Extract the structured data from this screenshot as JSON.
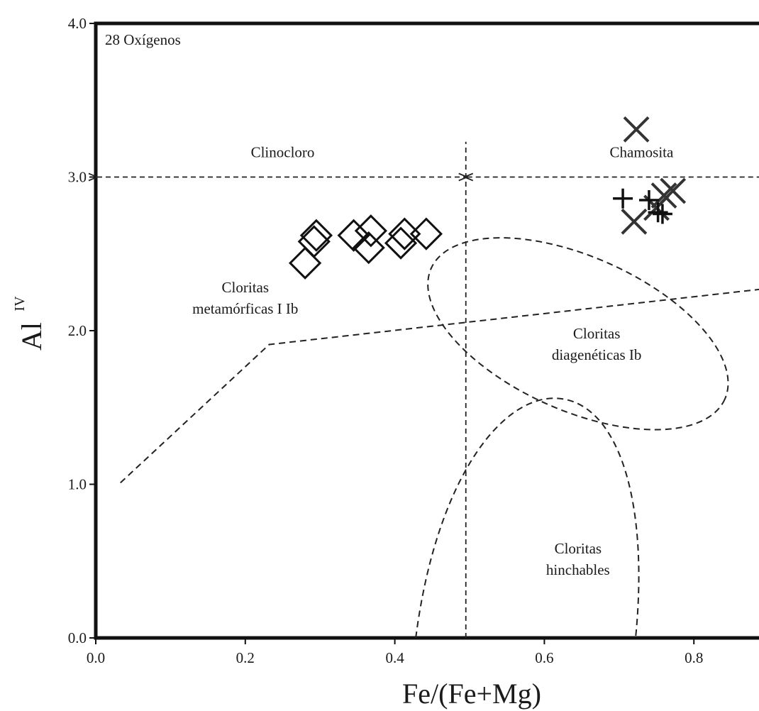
{
  "chart_data": {
    "type": "scatter",
    "title": "",
    "annotation_corner": "28 Oxígenos",
    "xlabel": "Fe/(Fe+Mg)",
    "ylabel": "Al",
    "ylabel_sup": "IV",
    "xlim": [
      0.0,
      0.89
    ],
    "ylim": [
      0.0,
      4.0
    ],
    "xticks": [
      {
        "value": 0.0,
        "label": "0.0"
      },
      {
        "value": 0.2,
        "label": "0.2"
      },
      {
        "value": 0.4,
        "label": "0.4"
      },
      {
        "value": 0.6,
        "label": "0.6"
      },
      {
        "value": 0.8,
        "label": "0.8"
      }
    ],
    "yticks": [
      {
        "value": 0.0,
        "label": "0.0"
      },
      {
        "value": 1.0,
        "label": "1.0"
      },
      {
        "value": 2.0,
        "label": "2.0"
      },
      {
        "value": 3.0,
        "label": "3.0"
      },
      {
        "value": 4.0,
        "label": "4.0"
      }
    ],
    "grid": false,
    "series": [
      {
        "marker": "diamond",
        "points": [
          {
            "x": 0.28,
            "y": 2.44
          },
          {
            "x": 0.292,
            "y": 2.58
          },
          {
            "x": 0.295,
            "y": 2.62
          },
          {
            "x": 0.345,
            "y": 2.62
          },
          {
            "x": 0.365,
            "y": 2.54
          },
          {
            "x": 0.368,
            "y": 2.65
          },
          {
            "x": 0.408,
            "y": 2.57
          },
          {
            "x": 0.413,
            "y": 2.63
          },
          {
            "x": 0.442,
            "y": 2.63
          }
        ]
      },
      {
        "marker": "x",
        "points": [
          {
            "x": 0.723,
            "y": 3.31
          },
          {
            "x": 0.72,
            "y": 2.71
          },
          {
            "x": 0.75,
            "y": 2.8
          },
          {
            "x": 0.76,
            "y": 2.88
          },
          {
            "x": 0.772,
            "y": 2.91
          }
        ]
      },
      {
        "marker": "plus",
        "points": [
          {
            "x": 0.705,
            "y": 2.86
          },
          {
            "x": 0.74,
            "y": 2.85
          },
          {
            "x": 0.752,
            "y": 2.77
          },
          {
            "x": 0.758,
            "y": 2.76
          }
        ]
      }
    ],
    "regions": [
      {
        "label_lines": [
          "Clinocloro"
        ],
        "x": 0.25,
        "y": 3.13
      },
      {
        "label_lines": [
          "Chamosita"
        ],
        "x": 0.73,
        "y": 3.13
      },
      {
        "label_lines": [
          "Cloritas",
          "metamórficas I Ib"
        ],
        "x": 0.2,
        "y": 2.25
      },
      {
        "label_lines": [
          "Cloritas",
          "diagenéticas Ib"
        ],
        "x": 0.67,
        "y": 1.95
      },
      {
        "label_lines": [
          "Cloritas",
          "hinchables"
        ],
        "x": 0.645,
        "y": 0.55
      }
    ],
    "boundaries": {
      "horizontal_arrow_y": 3.0,
      "horizontal_arrow_from_x": 0.0,
      "horizontal_arrow_mid_x": 0.495,
      "horizontal_arrow_to_x": 0.89,
      "vertical_x": 0.495,
      "vertical_from_y": 0.0,
      "vertical_to_y": 3.23,
      "polyline": [
        {
          "x": 0.033,
          "y": 1.01
        },
        {
          "x": 0.232,
          "y": 1.91
        },
        {
          "x": 0.89,
          "y": 2.27
        }
      ],
      "ellipse": {
        "cx": 0.645,
        "cy": 1.98,
        "rx": 0.215,
        "ry": 0.5,
        "rotation_deg": 24
      },
      "parabola": {
        "left_x": 0.428,
        "peak_x": 0.613,
        "peak_y": 1.56,
        "right_x": 0.722
      }
    }
  }
}
